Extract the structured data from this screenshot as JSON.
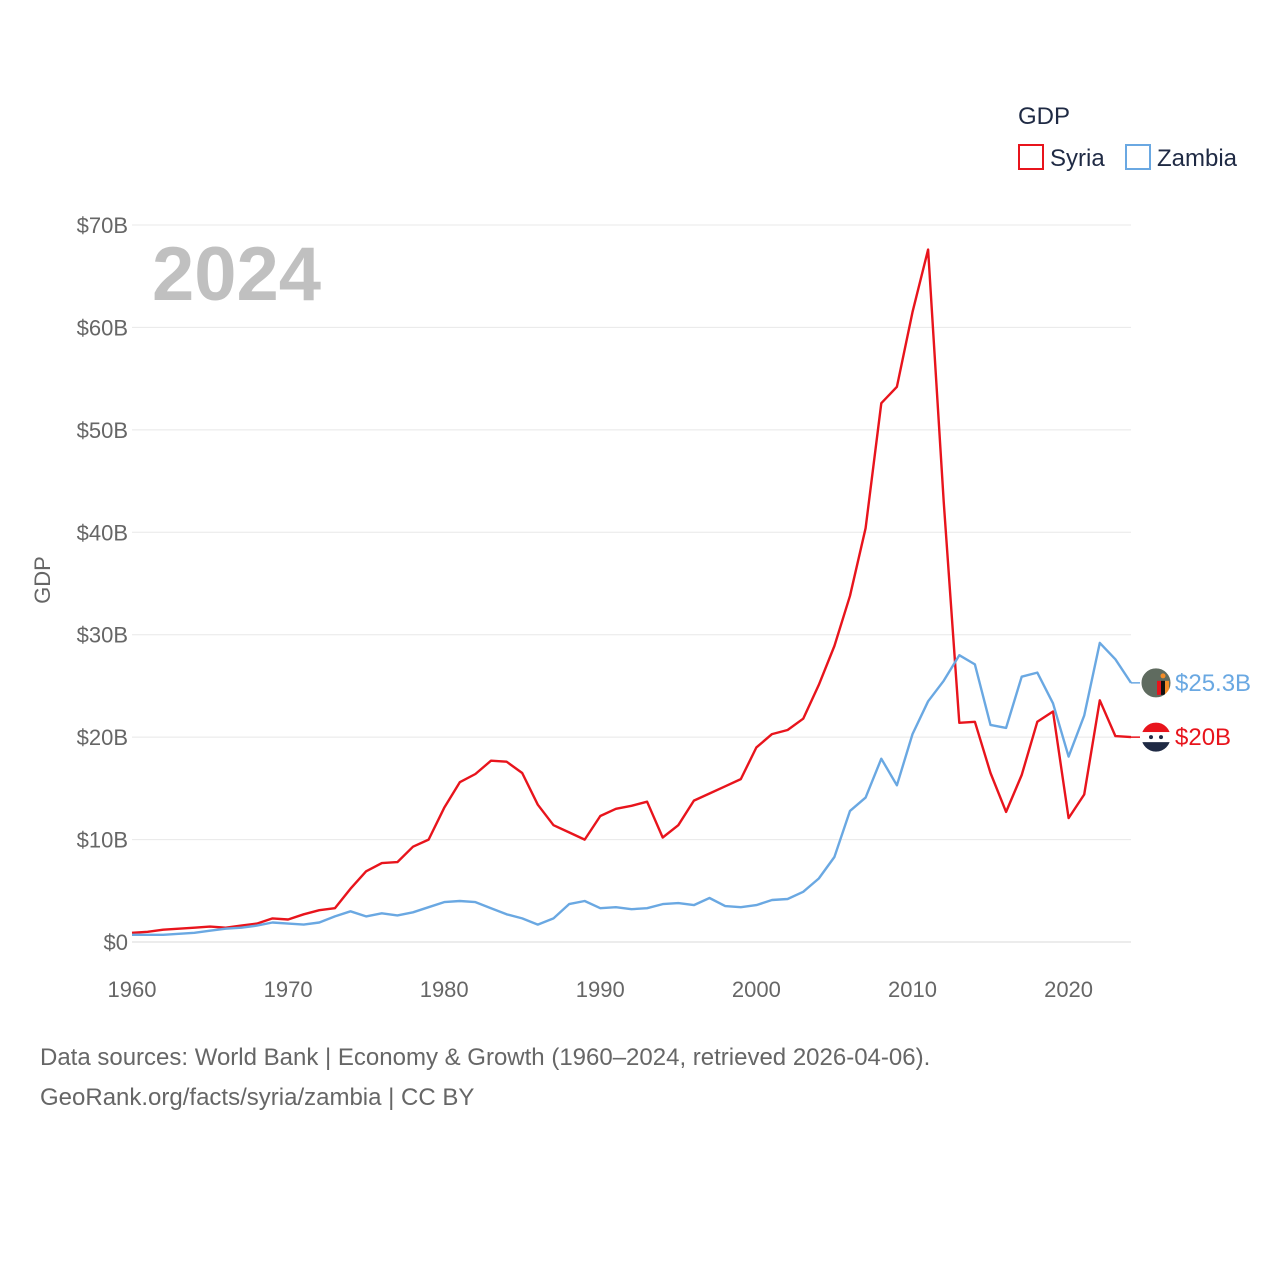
{
  "chart_data": {
    "type": "line",
    "title": "GDP",
    "year_label": "2024",
    "ylabel": "GDP",
    "xlabel": "",
    "xlim": [
      1960,
      2024
    ],
    "ylim": [
      0,
      70
    ],
    "y_unit": "billion USD",
    "x_ticks": [
      "1960",
      "1970",
      "1980",
      "1990",
      "2000",
      "2010",
      "2020"
    ],
    "y_ticks": [
      {
        "value": 0,
        "label": "$0"
      },
      {
        "value": 10,
        "label": "$10B"
      },
      {
        "value": 20,
        "label": "$20B"
      },
      {
        "value": 30,
        "label": "$30B"
      },
      {
        "value": 40,
        "label": "$40B"
      },
      {
        "value": 50,
        "label": "$50B"
      },
      {
        "value": 60,
        "label": "$60B"
      },
      {
        "value": 70,
        "label": "$70B"
      }
    ],
    "legend": {
      "title": "GDP",
      "position": "top-right"
    },
    "x": [
      1960,
      1961,
      1962,
      1963,
      1964,
      1965,
      1966,
      1967,
      1968,
      1969,
      1970,
      1971,
      1972,
      1973,
      1974,
      1975,
      1976,
      1977,
      1978,
      1979,
      1980,
      1981,
      1982,
      1983,
      1984,
      1985,
      1986,
      1987,
      1988,
      1989,
      1990,
      1991,
      1992,
      1993,
      1994,
      1995,
      1996,
      1997,
      1998,
      1999,
      2000,
      2001,
      2002,
      2003,
      2004,
      2005,
      2006,
      2007,
      2008,
      2009,
      2010,
      2011,
      2012,
      2013,
      2014,
      2015,
      2016,
      2017,
      2018,
      2019,
      2020,
      2021,
      2022,
      2023,
      2024
    ],
    "series": [
      {
        "name": "Syria",
        "color": "#e8141c",
        "end_label": "$20B",
        "flag": "syria-flag-icon",
        "values": [
          0.9,
          1.0,
          1.2,
          1.3,
          1.4,
          1.5,
          1.4,
          1.6,
          1.8,
          2.3,
          2.2,
          2.7,
          3.1,
          3.3,
          5.2,
          6.9,
          7.7,
          7.8,
          9.3,
          10.0,
          13.1,
          15.6,
          16.4,
          17.7,
          17.6,
          16.5,
          13.4,
          11.4,
          10.7,
          10.0,
          12.3,
          13.0,
          13.3,
          13.7,
          10.2,
          11.4,
          13.8,
          14.5,
          15.2,
          15.9,
          19.0,
          20.3,
          20.7,
          21.8,
          25.1,
          28.9,
          33.8,
          40.4,
          52.6,
          54.2,
          61.5,
          67.6,
          43.0,
          21.4,
          21.5,
          16.5,
          12.7,
          16.3,
          21.5,
          22.5,
          12.1,
          14.4,
          23.6,
          20.1,
          20.0
        ]
      },
      {
        "name": "Zambia",
        "color": "#6aa8e2",
        "end_label": "$25.3B",
        "flag": "zambia-flag-icon",
        "values": [
          0.7,
          0.7,
          0.7,
          0.8,
          0.9,
          1.1,
          1.3,
          1.4,
          1.6,
          1.9,
          1.8,
          1.7,
          1.9,
          2.5,
          3.0,
          2.5,
          2.8,
          2.6,
          2.9,
          3.4,
          3.9,
          4.0,
          3.9,
          3.3,
          2.7,
          2.3,
          1.7,
          2.3,
          3.7,
          4.0,
          3.3,
          3.4,
          3.2,
          3.3,
          3.7,
          3.8,
          3.6,
          4.3,
          3.5,
          3.4,
          3.6,
          4.1,
          4.2,
          4.9,
          6.2,
          8.3,
          12.8,
          14.1,
          17.9,
          15.3,
          20.3,
          23.5,
          25.5,
          28.0,
          27.1,
          21.2,
          20.9,
          25.9,
          26.3,
          23.3,
          18.1,
          22.1,
          29.2,
          27.6,
          25.3
        ]
      }
    ]
  },
  "footer": {
    "sources": "Data sources: World Bank | Economy & Growth (1960–2024, retrieved 2026-04-06).",
    "attribution": "GeoRank.org/facts/syria/zambia | CC BY"
  }
}
